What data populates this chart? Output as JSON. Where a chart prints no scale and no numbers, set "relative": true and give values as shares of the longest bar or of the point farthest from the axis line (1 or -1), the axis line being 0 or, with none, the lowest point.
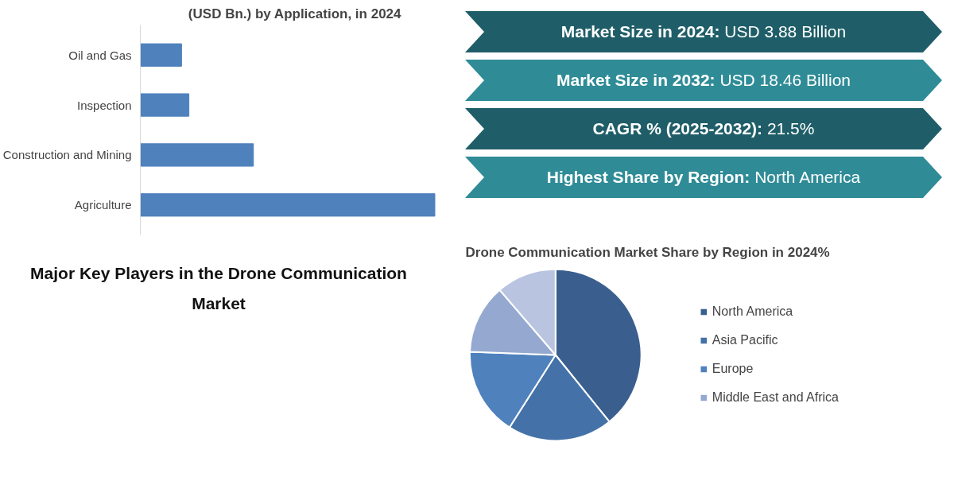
{
  "chart_data": [
    {
      "type": "bar",
      "title": "(USD Bn.) by Application, in 2024",
      "orientation": "horizontal",
      "relative": true,
      "categories": [
        "Oil and Gas",
        "Inspection",
        "Construction and Mining",
        "Agriculture"
      ],
      "values": [
        0.14,
        0.165,
        0.384,
        1
      ],
      "color": "#4f81bd",
      "grid": false
    },
    {
      "type": "other",
      "annotations": [
        "Market Size in 2024: USD 3.88 Billion",
        "Market Size in 2032: USD 18.46 Billion",
        "CAGR % (2025-2032): 21.5%",
        "Highest Share by Region: North America"
      ],
      "colors": [
        "#1f5e68",
        "#2f8c97",
        "#1f5e68",
        "#2f8c97"
      ]
    },
    {
      "type": "other",
      "title": "Major Key Players in the Drone Communication Market"
    },
    {
      "type": "pie",
      "title": "Drone Communication Market Share by Region in 2024%",
      "categories": [
        "North America",
        "Asia Pacific",
        "Europe",
        "Middle East and Africa",
        null
      ],
      "values": [
        39.2,
        19.8,
        16.6,
        13.1,
        11.3
      ],
      "colors": [
        "#3a5f8f",
        "#4472a8",
        "#4f81bd",
        "#95a9d0",
        "#b8c4e0"
      ],
      "legend": "right"
    }
  ]
}
